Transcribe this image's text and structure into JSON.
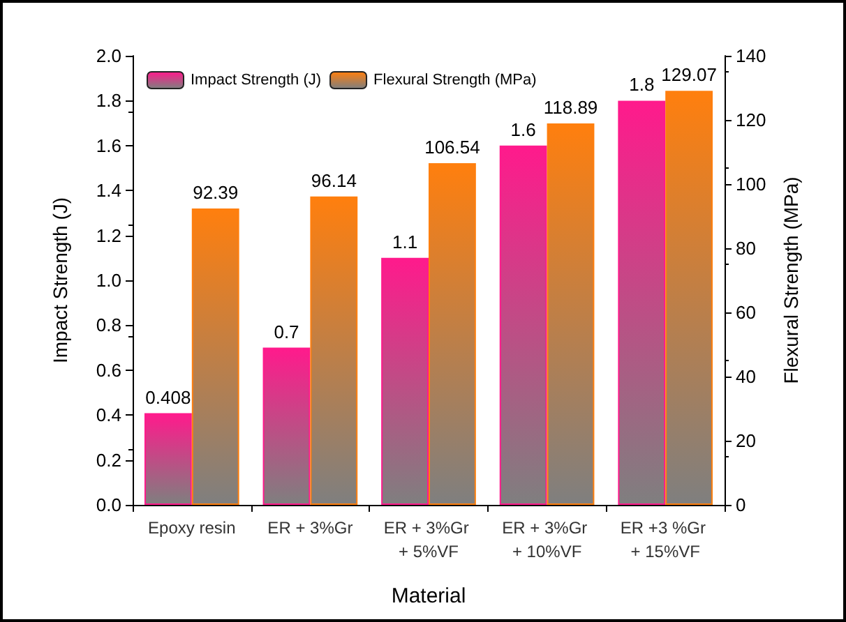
{
  "chart_data": {
    "type": "bar",
    "xlabel": "Material",
    "ylabel": "Impact Strength (J)",
    "y2label": "Flexural Strength (MPa)",
    "categories": [
      "Epoxy resin",
      "ER + 3%Gr",
      "ER + 3%Gr + 5%VF",
      "ER + 3%Gr + 10%VF",
      "ER +3 %Gr + 15%VF"
    ],
    "series": [
      {
        "name": "Impact Strength (J)",
        "color": "#ff1a8c",
        "values": [
          0.408,
          0.7,
          1.1,
          1.6,
          1.8
        ]
      },
      {
        "name": "Flexural Strength (MPa)",
        "color": "#ff7f0e",
        "axis": "y2",
        "values": [
          92.39,
          96.14,
          106.54,
          118.89,
          129.07
        ]
      }
    ],
    "ylim": [
      0,
      2.0
    ],
    "yticks": [
      {
        "value": 0,
        "label": "0.0"
      },
      {
        "value": 0.2,
        "label": "0.2"
      },
      {
        "value": 0.4,
        "label": "0.4"
      },
      {
        "value": 0.6,
        "label": "0.6"
      },
      {
        "value": 0.8,
        "label": "0.8"
      },
      {
        "value": 1.0,
        "label": "1.0"
      },
      {
        "value": 1.2,
        "label": "1.2"
      },
      {
        "value": 1.4,
        "label": "1.4"
      },
      {
        "value": 1.6,
        "label": "1.6"
      },
      {
        "value": 1.8,
        "label": "1.8"
      },
      {
        "value": 2.0,
        "label": "2.0"
      }
    ],
    "y2lim": [
      0,
      140
    ],
    "y2ticks": [
      0,
      20,
      40,
      60,
      80,
      100,
      120,
      140
    ],
    "data_labels": true,
    "grid": false,
    "legend": "top left"
  }
}
